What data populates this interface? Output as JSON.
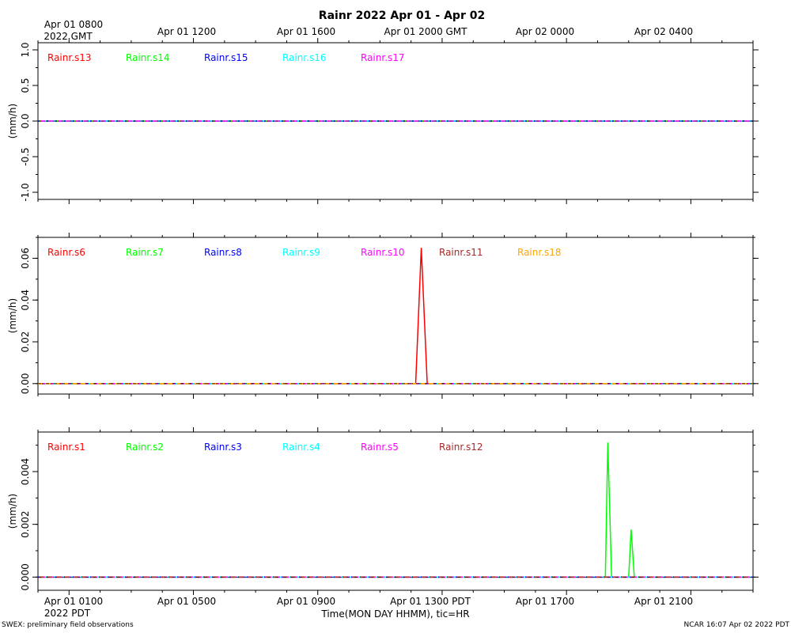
{
  "title": "Rainr 2022 Apr 01 - Apr 02",
  "top_axis": {
    "labels": [
      "Apr 01 0800",
      "Apr 01 1200",
      "Apr 01 1600",
      "Apr 01 2000 GMT",
      "Apr 02 0000",
      "Apr 02 0400"
    ],
    "first_sublabel": "2022 GMT"
  },
  "bottom_axis": {
    "labels": [
      "Apr 01 0100",
      "Apr 01 0500",
      "Apr 01 0900",
      "Apr 01 1300 PDT",
      "Apr 01 1700",
      "Apr 01 2100"
    ],
    "first_sublabel": "2022 PDT",
    "xlabel": "Time(MON DAY HHMM), tic=HR"
  },
  "footer": {
    "left": "SWEX: preliminary field observations",
    "right": "NCAR 16:07 Apr 02 2022 PDT"
  },
  "colors": {
    "red": "#ff0000",
    "green": "#00ff00",
    "blue": "#0000ff",
    "cyan": "#00ffff",
    "magenta": "#ff00ff",
    "brown": "#a52a2a",
    "orange": "#ffa500"
  },
  "chart_data": [
    {
      "type": "line",
      "panel": "top",
      "ylabel": "(mm/h)",
      "ylim": [
        -1.1,
        1.1
      ],
      "yticks": [
        -1.0,
        -0.5,
        0.0,
        0.5,
        1.0
      ],
      "ytick_labels": [
        "-1.0",
        "-0.5",
        "0.0",
        "0.5",
        "1.0"
      ],
      "xlim_hours": [
        -1,
        22
      ],
      "series": [
        {
          "name": "Rainr.s13",
          "color": "#ff0000",
          "x": [
            -1,
            22
          ],
          "y": [
            0,
            0
          ]
        },
        {
          "name": "Rainr.s14",
          "color": "#00ff00",
          "x": [
            -1,
            22
          ],
          "y": [
            0,
            0
          ]
        },
        {
          "name": "Rainr.s15",
          "color": "#0000ff",
          "x": [
            -1,
            22
          ],
          "y": [
            0,
            0
          ]
        },
        {
          "name": "Rainr.s16",
          "color": "#00ffff",
          "x": [
            -1,
            22
          ],
          "y": [
            0,
            0
          ]
        },
        {
          "name": "Rainr.s17",
          "color": "#ff00ff",
          "x": [
            -1,
            22
          ],
          "y": [
            0,
            0
          ]
        }
      ]
    },
    {
      "type": "line",
      "panel": "middle",
      "ylabel": "(mm/h)",
      "ylim": [
        -0.005,
        0.07
      ],
      "yticks": [
        0.0,
        0.02,
        0.04,
        0.06
      ],
      "ytick_labels": [
        "0.00",
        "0.02",
        "0.04",
        "0.06"
      ],
      "xlim_hours": [
        -1,
        22
      ],
      "series": [
        {
          "name": "Rainr.s6",
          "color": "#ff0000",
          "x": [
            -1,
            11.15,
            11.33,
            11.52,
            22
          ],
          "y": [
            0,
            0,
            0.065,
            0,
            0
          ]
        },
        {
          "name": "Rainr.s7",
          "color": "#00ff00",
          "x": [
            -1,
            22
          ],
          "y": [
            0,
            0
          ]
        },
        {
          "name": "Rainr.s8",
          "color": "#0000ff",
          "x": [
            -1,
            22
          ],
          "y": [
            0,
            0
          ]
        },
        {
          "name": "Rainr.s9",
          "color": "#00ffff",
          "x": [
            -1,
            22
          ],
          "y": [
            0,
            0
          ]
        },
        {
          "name": "Rainr.s10",
          "color": "#ff00ff",
          "x": [
            -1,
            22
          ],
          "y": [
            0,
            0
          ]
        },
        {
          "name": "Rainr.s11",
          "color": "#a52a2a",
          "x": [
            -1,
            22
          ],
          "y": [
            0,
            0
          ]
        },
        {
          "name": "Rainr.s18",
          "color": "#ffa500",
          "x": [
            -1,
            22
          ],
          "y": [
            0,
            0
          ]
        }
      ]
    },
    {
      "type": "line",
      "panel": "bottom",
      "ylabel": "(mm/h)",
      "ylim": [
        -0.0005,
        0.0055
      ],
      "yticks": [
        0.0,
        0.002,
        0.004
      ],
      "ytick_labels": [
        "0.000",
        "0.002",
        "0.004"
      ],
      "xlim_hours": [
        -1,
        22
      ],
      "series": [
        {
          "name": "Rainr.s1",
          "color": "#ff0000",
          "x": [
            -1,
            22
          ],
          "y": [
            0,
            0
          ]
        },
        {
          "name": "Rainr.s2",
          "color": "#00ff00",
          "x": [
            -1,
            17.25,
            17.33,
            17.45,
            18.0,
            18.08,
            18.18,
            22
          ],
          "y": [
            0,
            0,
            0.0051,
            0,
            0,
            0.0018,
            0,
            0
          ]
        },
        {
          "name": "Rainr.s3",
          "color": "#0000ff",
          "x": [
            -1,
            22
          ],
          "y": [
            0,
            0
          ]
        },
        {
          "name": "Rainr.s4",
          "color": "#00ffff",
          "x": [
            -1,
            22
          ],
          "y": [
            0,
            0
          ]
        },
        {
          "name": "Rainr.s5",
          "color": "#ff00ff",
          "x": [
            -1,
            22
          ],
          "y": [
            0,
            0
          ]
        },
        {
          "name": "Rainr.s12",
          "color": "#a52a2a",
          "x": [
            -1,
            22
          ],
          "y": [
            0,
            0
          ]
        }
      ]
    }
  ]
}
